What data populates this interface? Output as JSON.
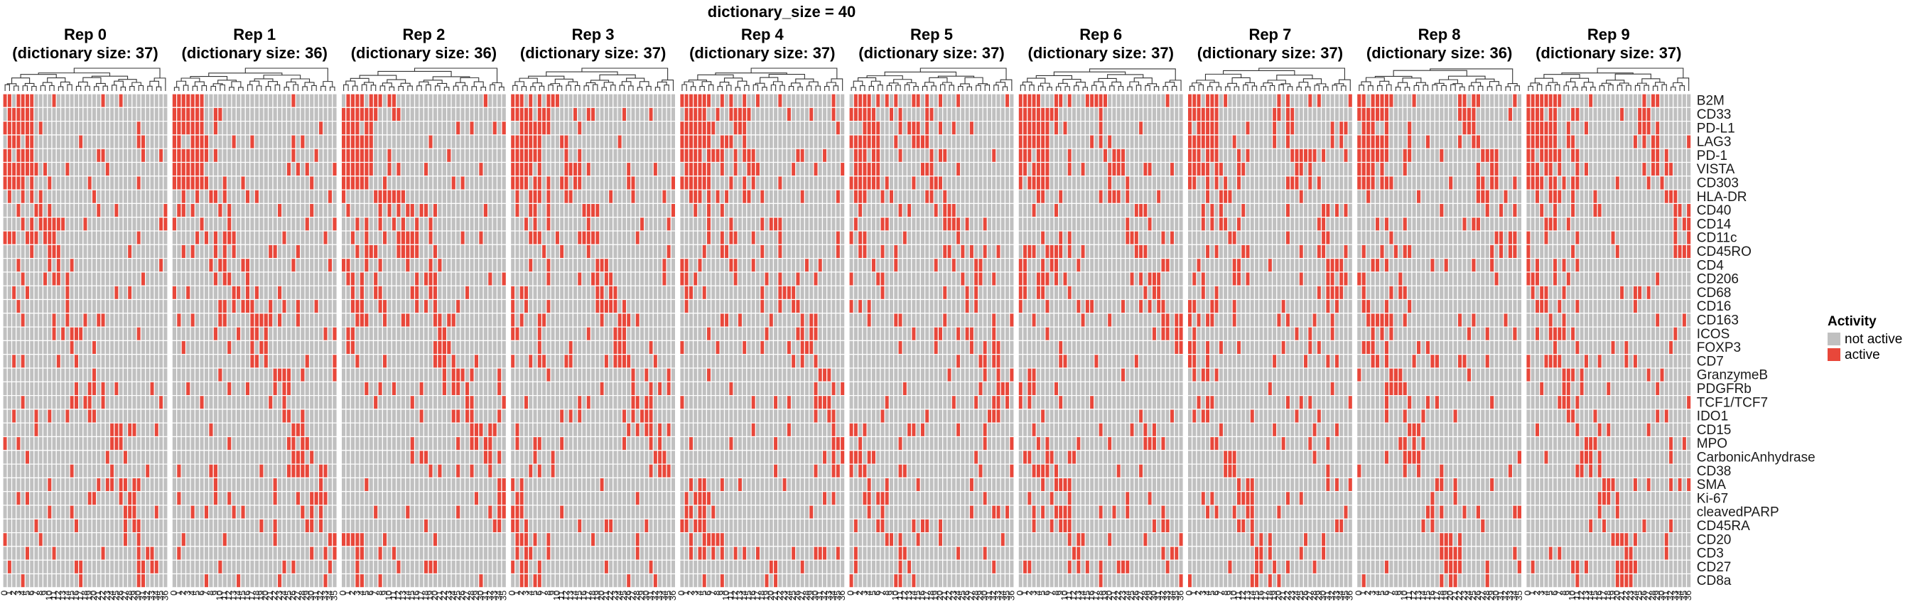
{
  "chart_data": {
    "type": "heatmap",
    "title": "dictionary_size = 40",
    "panels": [
      {
        "title": "Rep 0",
        "subtitle": "(dictionary size: 37)",
        "n_cols": 37
      },
      {
        "title": "Rep 1",
        "subtitle": "(dictionary size: 36)",
        "n_cols": 36
      },
      {
        "title": "Rep 2",
        "subtitle": "(dictionary size: 36)",
        "n_cols": 36
      },
      {
        "title": "Rep 3",
        "subtitle": "(dictionary size: 37)",
        "n_cols": 37
      },
      {
        "title": "Rep 4",
        "subtitle": "(dictionary size: 37)",
        "n_cols": 37
      },
      {
        "title": "Rep 5",
        "subtitle": "(dictionary size: 37)",
        "n_cols": 37
      },
      {
        "title": "Rep 6",
        "subtitle": "(dictionary size: 37)",
        "n_cols": 37
      },
      {
        "title": "Rep 7",
        "subtitle": "(dictionary size: 37)",
        "n_cols": 37
      },
      {
        "title": "Rep 8",
        "subtitle": "(dictionary size: 36)",
        "n_cols": 36
      },
      {
        "title": "Rep 9",
        "subtitle": "(dictionary size: 37)",
        "n_cols": 37
      }
    ],
    "rows": [
      "B2M",
      "CD33",
      "PD-L1",
      "LAG3",
      "PD-1",
      "VISTA",
      "CD303",
      "HLA-DR",
      "CD40",
      "CD14",
      "CD11c",
      "CD45RO",
      "CD4",
      "CD206",
      "CD68",
      "CD16",
      "CD163",
      "ICOS",
      "FOXP3",
      "CD7",
      "GranzymeB",
      "PDGFRb",
      "TCF1/TCF7",
      "IDO1",
      "CD15",
      "MPO",
      "CarbonicAnhydrase",
      "CD38",
      "SMA",
      "Ki-67",
      "cleavedPARP",
      "CD45RA",
      "CD20",
      "CD3",
      "CD27",
      "CD8a"
    ],
    "legend": {
      "title": "Activity",
      "entries": [
        {
          "label": "not active",
          "color": "#c0c0c0"
        },
        {
          "label": "active",
          "color": "#e8473a"
        }
      ]
    },
    "colors": {
      "inactive": "#c0c0c0",
      "active": "#e8473a",
      "grid": "#ffffff"
    },
    "has_dendrogram": true,
    "legend_position": "right"
  }
}
